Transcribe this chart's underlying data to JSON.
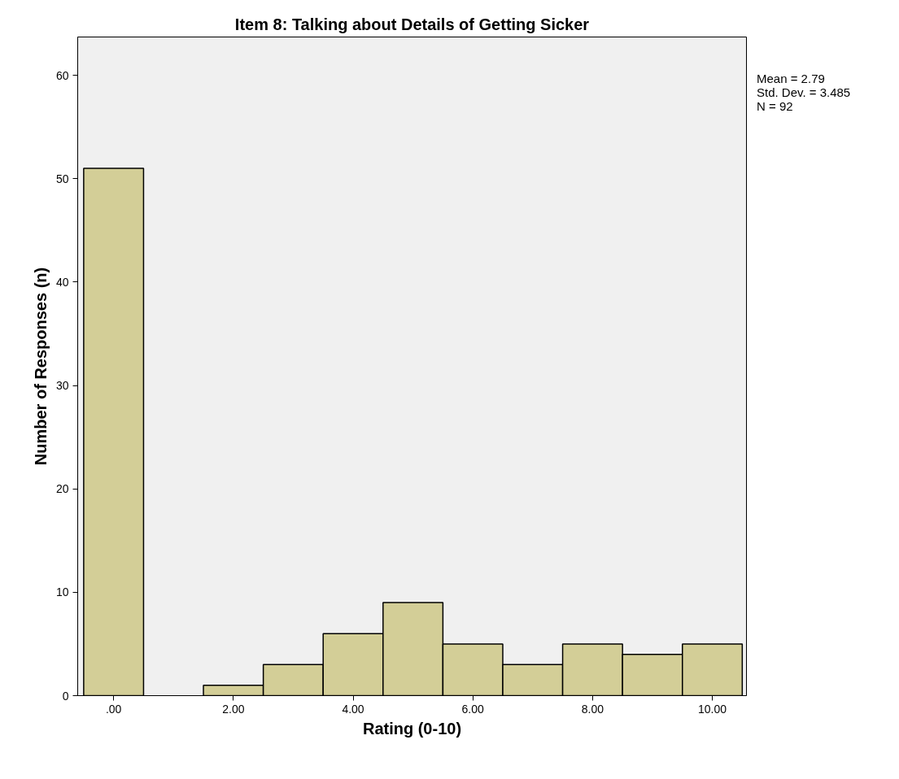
{
  "chart_data": {
    "type": "histogram",
    "title": "Item 8: Talking about Details of Getting Sicker",
    "xlabel": "Rating (0-10)",
    "ylabel": "Number of Responses (n)",
    "bins": [
      -0.5,
      0.5,
      1.5,
      2.5,
      3.5,
      4.5,
      5.5,
      6.5,
      7.5,
      8.5,
      9.5,
      10.5
    ],
    "values": [
      51,
      0,
      1,
      3,
      6,
      9,
      5,
      3,
      5,
      4,
      5
    ],
    "color": "#d3ce97",
    "xlim": [
      -0.6,
      10.57
    ],
    "ylim": [
      0,
      63.7
    ],
    "xticks": [
      {
        "value": 0,
        "label": ".00"
      },
      {
        "value": 2,
        "label": "2.00"
      },
      {
        "value": 4,
        "label": "4.00"
      },
      {
        "value": 6,
        "label": "6.00"
      },
      {
        "value": 8,
        "label": "8.00"
      },
      {
        "value": 10,
        "label": "10.00"
      }
    ],
    "yticks": [
      0,
      10,
      20,
      30,
      40,
      50,
      60
    ],
    "grid": false,
    "annotations": [
      "Mean = 2.79",
      "Std. Dev. = 3.485",
      "N = 92"
    ]
  }
}
